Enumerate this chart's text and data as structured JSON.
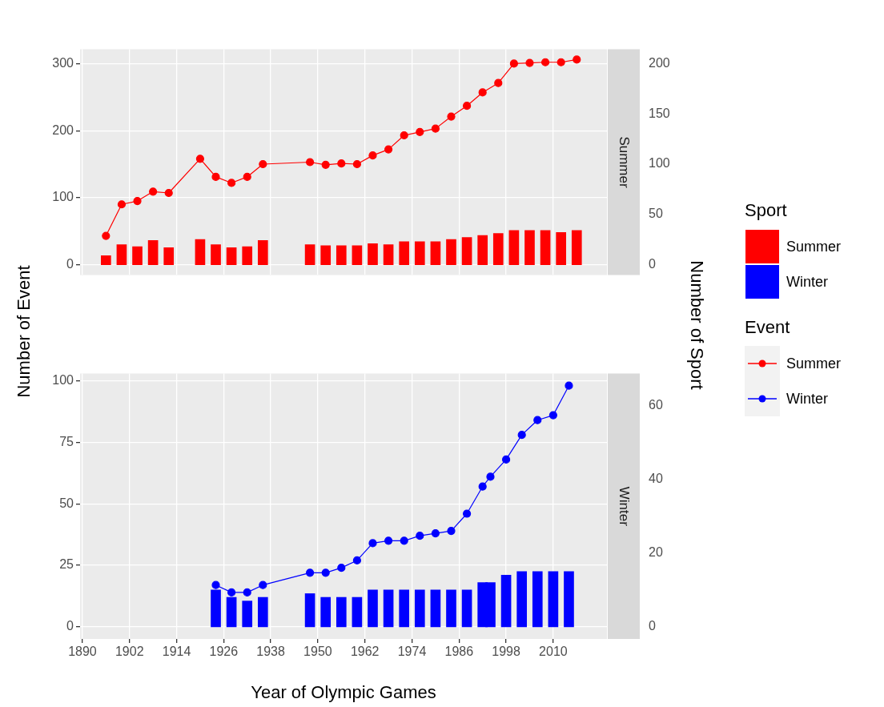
{
  "chart_data": [
    {
      "type": "bar",
      "title": "Summer",
      "ylabel": "Number of Event",
      "y2label": "Number of Sport",
      "legend_title": "Sport",
      "legend": "right",
      "grid": true,
      "marker": "circle",
      "tick_labels": "y",
      "x": [
        1896,
        1900,
        1904,
        1908,
        1912,
        1920,
        1924,
        1928,
        1932,
        1936,
        1948,
        1952,
        1956,
        1960,
        1964,
        1968,
        1972,
        1976,
        1980,
        1984,
        1988,
        1992,
        1996,
        2000,
        2004,
        2008,
        2012,
        2016
      ],
      "xlim": [
        1889.4,
        2023.7
      ],
      "xticks": [
        1890,
        1902,
        1914,
        1926,
        1938,
        1950,
        1962,
        1974,
        1986,
        1998,
        2010
      ],
      "ylim": [
        -15.3,
        321.3
      ],
      "yticks": [
        0,
        100,
        200,
        300
      ],
      "y2lim": [
        -10.2,
        214.2
      ],
      "y2ticks": [
        0,
        50,
        100,
        150,
        200
      ],
      "series": [
        {
          "name": "Summer",
          "axis": "y2",
          "color": "#ff0000",
          "values": [
            9,
            20,
            18,
            24,
            17,
            25,
            20,
            17,
            18,
            24,
            20,
            19,
            19,
            19,
            21,
            20,
            23,
            23,
            23,
            25,
            27,
            29,
            31,
            34,
            34,
            34,
            32,
            34
          ]
        },
        {
          "name": "Summer",
          "type": "line",
          "color": "#ff0000",
          "values": [
            43,
            90,
            95,
            109,
            107,
            158,
            131,
            122,
            131,
            150,
            153,
            149,
            151,
            150,
            163,
            172,
            193,
            198,
            203,
            221,
            237,
            257,
            271,
            300,
            301,
            302,
            302,
            306
          ]
        }
      ]
    },
    {
      "type": "bar",
      "title": "Winter",
      "xlabel": "Year of Olympic Games",
      "legend_title": "Event",
      "legend": "right",
      "grid": true,
      "marker": "circle",
      "x": [
        1924,
        1928,
        1932,
        1936,
        1948,
        1952,
        1956,
        1960,
        1964,
        1968,
        1972,
        1976,
        1980,
        1984,
        1988,
        1992,
        1994,
        1998,
        2002,
        2006,
        2010,
        2014
      ],
      "xlim": [
        1889.4,
        2023.7
      ],
      "xticks": [
        1890,
        1902,
        1914,
        1926,
        1938,
        1950,
        1962,
        1974,
        1986,
        1998,
        2010
      ],
      "ylim": [
        -4.9,
        102.9
      ],
      "yticks": [
        0,
        25,
        50,
        75,
        100
      ],
      "y2lim": [
        -3.27,
        68.6
      ],
      "y2ticks": [
        0,
        20,
        40,
        60
      ],
      "series": [
        {
          "name": "Winter",
          "axis": "y2",
          "color": "#0000ff",
          "values": [
            10,
            8,
            7,
            8,
            9,
            8,
            8,
            8,
            10,
            10,
            10,
            10,
            10,
            10,
            10,
            12,
            12,
            14,
            15,
            15,
            15,
            15
          ]
        },
        {
          "name": "Winter",
          "type": "line",
          "color": "#0000ff",
          "values": [
            17,
            14,
            14,
            17,
            22,
            22,
            24,
            27,
            34,
            35,
            35,
            37,
            38,
            39,
            46,
            57,
            61,
            68,
            78,
            84,
            86,
            98
          ]
        }
      ]
    }
  ]
}
